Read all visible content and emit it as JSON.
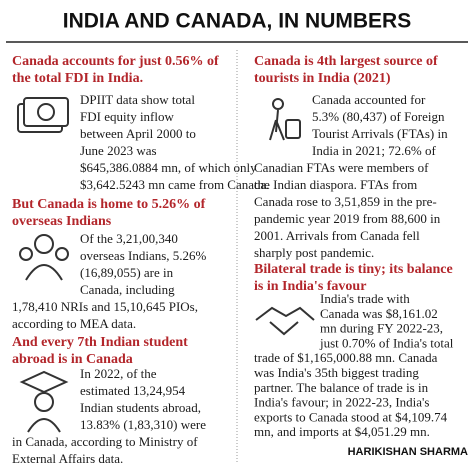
{
  "title": "INDIA AND CANADA, IN NUMBERS",
  "sections": [
    {
      "heading": [
        "Canada accounts for just 0.56% of",
        "the total FDI in India."
      ],
      "lines": [
        "DPIIT data show total",
        "FDI equity inflow",
        "between April 2000 to",
        "June 2023 was",
        "$645,386.0884 mn, of which only",
        "$3,642.5243 mn came from Canada."
      ]
    },
    {
      "heading": [
        "But Canada is home to 5.26% of",
        "overseas Indians"
      ],
      "lines": [
        "Of the 3,21,00,340",
        "overseas Indians, 5.26%",
        "(16,89,055) are in",
        "Canada, including",
        "1,78,410 NRIs and 15,10,645 PIOs,",
        "according to MEA data."
      ]
    },
    {
      "heading": [
        "And every 7th Indian student",
        "abroad is in Canada"
      ],
      "lines": [
        "In 2022, of the",
        "estimated 13,24,954",
        "Indian students abroad,",
        "13.83% (1,83,310) were",
        "in Canada, according to Ministry of",
        "External Affairs data."
      ]
    },
    {
      "heading": [
        "Canada is 4th largest source of",
        "tourists in India (2021)"
      ],
      "lines": [
        "Canada accounted for",
        "5.3% (80,437) of Foreign",
        "Tourist Arrivals (FTAs) in",
        "India in 2021; 72.6% of",
        "Canadian FTAs were members of",
        "the Indian diaspora. FTAs from",
        "Canada rose to 3,51,859 in the pre-",
        "pandemic year 2019 from 88,600 in",
        "2001. Arrivals from Canada fell",
        "sharply post pandemic."
      ]
    },
    {
      "heading": [
        "Bilateral trade is tiny; its balance",
        "is in India's favour"
      ],
      "lines": [
        "India's trade with",
        "Canada was $8,161.02",
        "mn during FY 2022-23,",
        "just 0.70% of India's total",
        "trade of $1,165,000.88 mn. Canada",
        "was India's 35th biggest trading",
        "partner. The balance of trade is in",
        "India's favour; in 2022-23, India's",
        "exports to Canada stood at $4,109.74",
        "mn, and imports at $4,051.29 mn."
      ]
    }
  ],
  "credit": "HARIKISHAN SHARMA"
}
